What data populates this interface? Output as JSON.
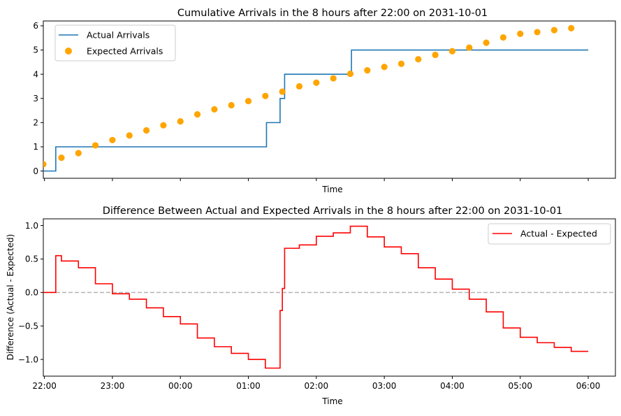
{
  "chart_data": [
    {
      "type": "line",
      "title": "Cumulative Arrivals in the 8 hours after 22:00 on 2031-10-01",
      "xlabel": "Time",
      "ylabel": "",
      "x_tick_labels_visible": false,
      "x_ticks": [
        "22:00",
        "23:00",
        "00:00",
        "01:00",
        "02:00",
        "03:00",
        "04:00",
        "05:00",
        "06:00"
      ],
      "xlim": [
        "21:59",
        "06:24"
      ],
      "ylim": [
        -0.3,
        6.2
      ],
      "y_ticks": [
        "0",
        "1",
        "2",
        "3",
        "4",
        "5",
        "6"
      ],
      "legend_position": "top-left",
      "series": [
        {
          "name": "Actual Arrivals",
          "kind": "step",
          "color": "#1f77b4",
          "x": [
            "21:59",
            "22:10",
            "01:16",
            "01:28",
            "01:32",
            "01:48",
            "02:31",
            "06:00"
          ],
          "y": [
            0,
            1,
            2,
            3,
            4,
            4,
            5,
            5
          ]
        },
        {
          "name": "Expected Arrivals",
          "kind": "scatter",
          "color": "#ffa500",
          "x": [
            "21:59",
            "22:15",
            "22:30",
            "22:45",
            "23:00",
            "23:15",
            "23:30",
            "23:45",
            "00:00",
            "00:15",
            "00:30",
            "00:45",
            "01:00",
            "01:15",
            "01:30",
            "01:45",
            "02:00",
            "02:15",
            "02:30",
            "02:45",
            "03:00",
            "03:15",
            "03:30",
            "03:45",
            "04:00",
            "04:15",
            "04:30",
            "04:45",
            "05:00",
            "05:15",
            "05:30",
            "05:45"
          ],
          "y": [
            0.28,
            0.55,
            0.74,
            1.06,
            1.28,
            1.47,
            1.68,
            1.89,
            2.05,
            2.34,
            2.55,
            2.72,
            2.89,
            3.1,
            3.28,
            3.5,
            3.65,
            3.83,
            4.02,
            4.16,
            4.3,
            4.43,
            4.62,
            4.8,
            4.95,
            5.1,
            5.3,
            5.52,
            5.67,
            5.74,
            5.82,
            5.9
          ]
        }
      ]
    },
    {
      "type": "line",
      "title": "Difference Between Actual and Expected Arrivals in the 8 hours after 22:00 on 2031-10-01",
      "xlabel": "Time",
      "ylabel": "Difference (Actual - Expected)",
      "x_ticks": [
        "22:00",
        "23:00",
        "00:00",
        "01:00",
        "02:00",
        "03:00",
        "04:00",
        "05:00",
        "06:00"
      ],
      "xlim": [
        "21:59",
        "06:24"
      ],
      "ylim": [
        -1.25,
        1.1
      ],
      "y_ticks": [
        "−1.0",
        "−0.5",
        "0.0",
        "0.5",
        "1.0"
      ],
      "legend_position": "top-right",
      "reference_line": {
        "y": 0.0,
        "style": "dashed",
        "color": "#b3b3b3"
      },
      "series": [
        {
          "name": "Actual - Expected",
          "kind": "step",
          "color": "#ff0000",
          "x": [
            "21:59",
            "22:10",
            "22:15",
            "22:30",
            "22:45",
            "23:00",
            "23:15",
            "23:30",
            "23:45",
            "00:00",
            "00:15",
            "00:30",
            "00:45",
            "01:00",
            "01:15",
            "01:28",
            "01:30",
            "01:32",
            "01:45",
            "02:00",
            "02:15",
            "02:30",
            "02:45",
            "03:00",
            "03:15",
            "03:30",
            "03:45",
            "04:00",
            "04:15",
            "04:30",
            "04:45",
            "05:00",
            "05:15",
            "05:30",
            "05:45",
            "06:00"
          ],
          "y": [
            0.0,
            0.55,
            0.47,
            0.37,
            0.13,
            -0.02,
            -0.1,
            -0.23,
            -0.36,
            -0.47,
            -0.68,
            -0.81,
            -0.91,
            -1.0,
            -1.13,
            -0.27,
            0.06,
            0.66,
            0.71,
            0.84,
            0.89,
            0.99,
            0.83,
            0.68,
            0.58,
            0.37,
            0.2,
            0.05,
            -0.1,
            -0.29,
            -0.53,
            -0.67,
            -0.75,
            -0.82,
            -0.88,
            -0.88
          ]
        }
      ]
    }
  ]
}
